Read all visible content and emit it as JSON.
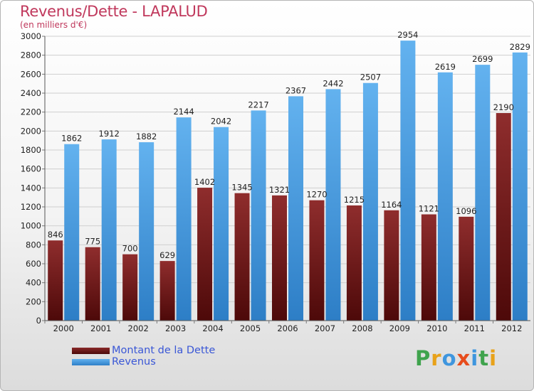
{
  "title": "Revenus/Dette - LAPALUD",
  "subtitle": "(en milliers d'€)",
  "legend": [
    {
      "label": "Montant de la Dette",
      "color": "#7a1f1f"
    },
    {
      "label": "Revenus",
      "color": "#3f96de"
    }
  ],
  "logo": {
    "letters": [
      {
        "ch": "P",
        "color": "#3fa34d"
      },
      {
        "ch": "r",
        "color": "#e8a21a"
      },
      {
        "ch": "o",
        "color": "#3f96de"
      },
      {
        "ch": "x",
        "color": "#e74c1c"
      },
      {
        "ch": "i",
        "color": "#3f96de"
      },
      {
        "ch": "t",
        "color": "#3fa34d"
      },
      {
        "ch": "i",
        "color": "#e8a21a"
      }
    ]
  },
  "chart_data": {
    "type": "bar",
    "title": "Revenus/Dette - LAPALUD",
    "subtitle": "(en milliers d'€)",
    "categories": [
      "2000",
      "2001",
      "2002",
      "2003",
      "2004",
      "2005",
      "2006",
      "2007",
      "2008",
      "2009",
      "2010",
      "2011",
      "2012"
    ],
    "series": [
      {
        "name": "Montant de la Dette",
        "color": "#7a1f1f",
        "values": [
          846,
          775,
          700,
          629,
          1402,
          1345,
          1321,
          1270,
          1215,
          1164,
          1121,
          1096,
          2190
        ],
        "labels": [
          "846",
          "775",
          "700",
          "629",
          "1402",
          "1345",
          "1321",
          "1270",
          "1215",
          "1164",
          "1121",
          "1096",
          "2190"
        ]
      },
      {
        "name": "Revenus",
        "color": "#3f96de",
        "values": [
          1862,
          1912,
          1882,
          2144,
          2042,
          2217,
          2367,
          2442,
          2507,
          2954,
          2619,
          2699,
          2829
        ],
        "labels": [
          "1862",
          "1912",
          "1882",
          "2144",
          "2042",
          "2217",
          "2367",
          "2442",
          "2507",
          "2954",
          "2619",
          "2699",
          "2829"
        ]
      }
    ],
    "ylim": [
      0,
      3000
    ],
    "yticks": [
      0,
      200,
      400,
      600,
      800,
      1000,
      1200,
      1400,
      1600,
      1800,
      2000,
      2200,
      2400,
      2600,
      2800,
      3000
    ],
    "grid": true,
    "legend_position": "bottom-left"
  }
}
